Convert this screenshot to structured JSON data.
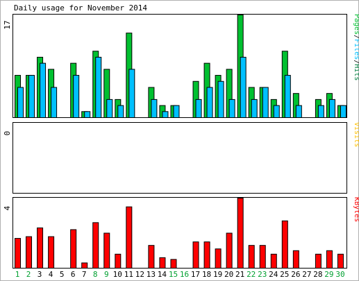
{
  "colors": {
    "background": "#ffffff",
    "frame": "#000000",
    "pages": "#00c030",
    "files": "#00c0ff",
    "hits": "#008040",
    "visits": "#ffc000",
    "kbytes": "#ff0000",
    "weekday_label": "#000000",
    "weekend_label": "#00a030"
  },
  "chart_data": [
    {
      "type": "bar",
      "title": "Daily usage for November 2014",
      "panel": "top",
      "ymax_label": "17",
      "legend": [
        {
          "text": "Pages",
          "color_key": "pages"
        },
        {
          "text": "/",
          "color_key": "frame"
        },
        {
          "text": "Files",
          "color_key": "files"
        },
        {
          "text": "/",
          "color_key": "frame"
        },
        {
          "text": "Hits",
          "color_key": "hits"
        }
      ],
      "categories": [
        "1",
        "2",
        "3",
        "4",
        "5",
        "6",
        "7",
        "8",
        "9",
        "10",
        "11",
        "12",
        "13",
        "14",
        "15",
        "16",
        "17",
        "18",
        "19",
        "20",
        "21",
        "22",
        "23",
        "24",
        "25",
        "26",
        "27",
        "28",
        "29",
        "30"
      ],
      "ylim": [
        0,
        17
      ],
      "series": [
        {
          "name": "Pages",
          "color_key": "pages",
          "values": [
            7,
            7,
            10,
            8,
            0,
            9,
            1,
            11,
            8,
            3,
            14,
            0,
            5,
            2,
            2,
            0,
            6,
            9,
            7,
            8,
            17,
            5,
            5,
            3,
            11,
            4,
            0,
            3,
            4,
            2
          ]
        },
        {
          "name": "Files",
          "color_key": "files",
          "values": [
            5,
            7,
            9,
            5,
            0,
            7,
            1,
            10,
            3,
            2,
            8,
            0,
            3,
            1,
            2,
            0,
            3,
            5,
            6,
            3,
            10,
            3,
            5,
            2,
            7,
            2,
            0,
            2,
            3,
            2
          ]
        }
      ]
    },
    {
      "type": "bar",
      "panel": "middle",
      "ymax_label": "0",
      "legend": [
        {
          "text": "Visits",
          "color_key": "visits"
        }
      ],
      "categories": [
        "1",
        "2",
        "3",
        "4",
        "5",
        "6",
        "7",
        "8",
        "9",
        "10",
        "11",
        "12",
        "13",
        "14",
        "15",
        "16",
        "17",
        "18",
        "19",
        "20",
        "21",
        "22",
        "23",
        "24",
        "25",
        "26",
        "27",
        "28",
        "29",
        "30"
      ],
      "ylim": [
        0,
        1
      ],
      "series": [
        {
          "name": "Visits",
          "color_key": "visits",
          "values": [
            0,
            0,
            0,
            0,
            0,
            0,
            0,
            0,
            0,
            0,
            0,
            0,
            0,
            0,
            0,
            0,
            0,
            0,
            0,
            0,
            0,
            0,
            0,
            0,
            0,
            0,
            0,
            0,
            0,
            0
          ]
        }
      ]
    },
    {
      "type": "bar",
      "panel": "bottom",
      "ymax_label": "4",
      "legend": [
        {
          "text": "KBytes",
          "color_key": "kbytes"
        }
      ],
      "categories": [
        "1",
        "2",
        "3",
        "4",
        "5",
        "6",
        "7",
        "8",
        "9",
        "10",
        "11",
        "12",
        "13",
        "14",
        "15",
        "16",
        "17",
        "18",
        "19",
        "20",
        "21",
        "22",
        "23",
        "24",
        "25",
        "26",
        "27",
        "28",
        "29",
        "30"
      ],
      "weekend_days": [
        "1",
        "2",
        "8",
        "9",
        "15",
        "16",
        "22",
        "23",
        "29",
        "30"
      ],
      "ylim": [
        0,
        4
      ],
      "series": [
        {
          "name": "KBytes",
          "color_key": "kbytes",
          "values": [
            1.7,
            1.8,
            2.3,
            1.8,
            0,
            2.2,
            0.3,
            2.6,
            2.0,
            0.8,
            3.5,
            0,
            1.3,
            0.6,
            0.5,
            0,
            1.5,
            1.5,
            1.1,
            2.0,
            4.0,
            1.3,
            1.3,
            0.8,
            2.7,
            1.0,
            0,
            0.8,
            1.0,
            0.8
          ]
        }
      ]
    }
  ]
}
